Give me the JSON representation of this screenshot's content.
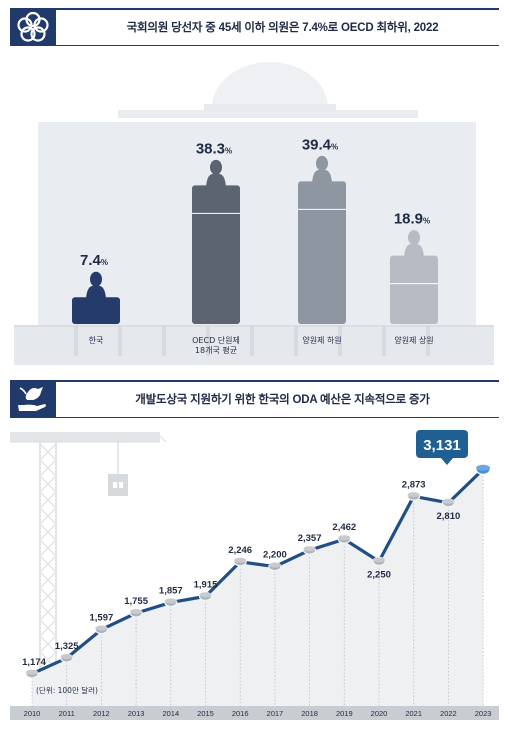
{
  "section1": {
    "title": "국회의원 당선자 중 45세 이하 의원은 7.4%로 OECD 최하위, 2022",
    "icon": "circles-logo-icon"
  },
  "section2": {
    "title": "개발도상국 지원하기 위한 한국의 ODA 예산은 지속적으로 증가",
    "icon": "dove-hand-icon",
    "unit_note": "(단위: 100만 달러)",
    "callout": "3,131"
  },
  "colors": {
    "navy": "#1f3a6b",
    "bar_korea": "#253b6a",
    "bar_oecd": "#5b6470",
    "bar_lower": "#8e96a1",
    "bar_upper": "#b7bcc4",
    "line": "#1f4f86",
    "callout_bg": "#1f5f92"
  },
  "chart_data": [
    {
      "type": "bar",
      "title": "국회의원 당선자 중 45세 이하 의원은 7.4%로 OECD 최하위, 2022",
      "categories": [
        "한국",
        "OECD 단원제\n18개국 평균",
        "양원제 하원",
        "양원제 상원"
      ],
      "values": [
        7.4,
        38.3,
        39.4,
        18.9
      ],
      "value_labels": [
        "7.4",
        "38.3",
        "39.4",
        "18.9"
      ],
      "unit": "%",
      "ylim": [
        0,
        45
      ],
      "grid": false
    },
    {
      "type": "line",
      "title": "개발도상국 지원하기 위한 한국의 ODA 예산은 지속적으로 증가",
      "x": [
        "2010",
        "2011",
        "2012",
        "2013",
        "2014",
        "2015",
        "2016",
        "2017",
        "2018",
        "2019",
        "2020",
        "2021",
        "2022",
        "2023"
      ],
      "y": [
        1174,
        1325,
        1597,
        1755,
        1857,
        1915,
        2246,
        2200,
        2357,
        2462,
        2250,
        2873,
        2810,
        3131
      ],
      "y_labels": [
        "1,174",
        "1,325",
        "1,597",
        "1,755",
        "1,857",
        "1,915",
        "2,246",
        "2,200",
        "2,357",
        "2,462",
        "2,250",
        "2,873",
        "2,810",
        "3,131"
      ],
      "ylabel": "(단위: 100만 달러)",
      "ylim": [
        700,
        3400
      ],
      "grid": "vertical-dotted"
    }
  ]
}
